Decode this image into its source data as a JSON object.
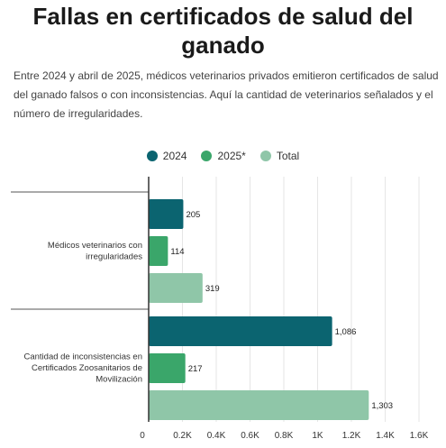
{
  "title": "Fallas en certificados de salud del ganado",
  "subtitle": "Entre 2024 y abril de 2025, médicos veterinarios privados emitieron certificados de salud del ganado falsos o con inconsistencias. Aquí la cantidad de veterinarios señalados y el número de irregularidades.",
  "colors": {
    "2024": "#0b6470",
    "2025*": "#3aa66a",
    "Total": "#8fc6a8"
  },
  "chart_data": {
    "type": "bar",
    "orientation": "horizontal",
    "categories": [
      [
        "Médicos veterinarios con",
        "irregularidades"
      ],
      [
        "Cantidad de inconsistencias en",
        "Certificados Zoosanitarios de",
        "Movilización"
      ]
    ],
    "series": [
      {
        "name": "2024",
        "values": [
          205,
          1086
        ],
        "labels": [
          "205",
          "1,086"
        ]
      },
      {
        "name": "2025*",
        "values": [
          114,
          217
        ],
        "labels": [
          "114",
          "217"
        ]
      },
      {
        "name": "Total",
        "values": [
          319,
          1303
        ],
        "labels": [
          "319",
          "1,303"
        ]
      }
    ],
    "xlim": [
      0,
      1600
    ],
    "xticks": [
      0,
      200,
      400,
      600,
      800,
      1000,
      1200,
      1400,
      1600
    ],
    "xtick_labels": [
      "0",
      "0.2K",
      "0.4K",
      "0.6K",
      "0.8K",
      "1K",
      "1.2K",
      "1.4K",
      "1.6K"
    ],
    "grid": true,
    "legend_position": "top-center"
  }
}
